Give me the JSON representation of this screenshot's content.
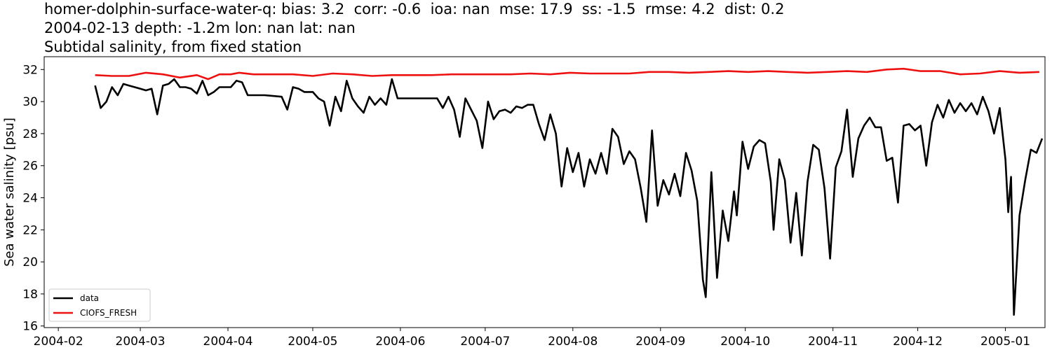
{
  "chart_data": {
    "type": "line",
    "title_lines": [
      "homer-dolphin-surface-water-q: bias: 3.2  corr: -0.6  ioa: nan  mse: 17.9  ss: -1.5  rmse: 4.2  dist: 0.2",
      "2004-02-13 depth: -1.2m lon: nan lat: nan",
      "Subtidal salinity, from fixed station"
    ],
    "xlabel": "",
    "ylabel": "Sea water salinity [psu]",
    "xlim": [
      "2004-01-27",
      "2005-01-15"
    ],
    "ylim": [
      15.9,
      32.8
    ],
    "x_ticks": [
      "2004-02",
      "2004-03",
      "2004-04",
      "2004-05",
      "2004-06",
      "2004-07",
      "2004-08",
      "2004-09",
      "2004-10",
      "2004-11",
      "2004-12",
      "2005-01"
    ],
    "y_ticks": [
      16,
      18,
      20,
      22,
      24,
      26,
      28,
      30,
      32
    ],
    "grid": false,
    "legend_position": "lower-left",
    "series": [
      {
        "name": "data",
        "color": "#000000",
        "points": [
          [
            "2004-02-14",
            31.0
          ],
          [
            "2004-02-16",
            29.6
          ],
          [
            "2004-02-18",
            30.0
          ],
          [
            "2004-02-20",
            30.9
          ],
          [
            "2004-02-22",
            30.4
          ],
          [
            "2004-02-24",
            31.1
          ],
          [
            "2004-02-26",
            31.0
          ],
          [
            "2004-02-28",
            30.9
          ],
          [
            "2004-03-01",
            30.8
          ],
          [
            "2004-03-03",
            30.7
          ],
          [
            "2004-03-05",
            30.8
          ],
          [
            "2004-03-07",
            29.2
          ],
          [
            "2004-03-09",
            31.0
          ],
          [
            "2004-03-11",
            31.1
          ],
          [
            "2004-03-13",
            31.4
          ],
          [
            "2004-03-15",
            30.9
          ],
          [
            "2004-03-17",
            30.9
          ],
          [
            "2004-03-19",
            30.8
          ],
          [
            "2004-03-21",
            30.5
          ],
          [
            "2004-03-23",
            31.3
          ],
          [
            "2004-03-25",
            30.4
          ],
          [
            "2004-03-27",
            30.6
          ],
          [
            "2004-03-29",
            30.9
          ],
          [
            "2004-03-31",
            30.9
          ],
          [
            "2004-04-02",
            30.9
          ],
          [
            "2004-04-04",
            31.3
          ],
          [
            "2004-04-06",
            31.2
          ],
          [
            "2004-04-08",
            30.4
          ],
          [
            "2004-04-14",
            30.4
          ],
          [
            "2004-04-20",
            30.3
          ],
          [
            "2004-04-22",
            29.5
          ],
          [
            "2004-04-24",
            30.9
          ],
          [
            "2004-04-26",
            30.8
          ],
          [
            "2004-04-28",
            30.6
          ],
          [
            "2004-05-01",
            30.6
          ],
          [
            "2004-05-03",
            30.2
          ],
          [
            "2004-05-05",
            30.0
          ],
          [
            "2004-05-07",
            28.5
          ],
          [
            "2004-05-09",
            30.3
          ],
          [
            "2004-05-11",
            29.4
          ],
          [
            "2004-05-13",
            31.3
          ],
          [
            "2004-05-15",
            30.2
          ],
          [
            "2004-05-17",
            29.7
          ],
          [
            "2004-05-19",
            29.3
          ],
          [
            "2004-05-21",
            30.3
          ],
          [
            "2004-05-23",
            29.8
          ],
          [
            "2004-05-25",
            30.2
          ],
          [
            "2004-05-27",
            29.8
          ],
          [
            "2004-05-29",
            31.4
          ],
          [
            "2004-05-31",
            30.2
          ],
          [
            "2004-06-08",
            30.2
          ],
          [
            "2004-06-14",
            30.2
          ],
          [
            "2004-06-16",
            29.6
          ],
          [
            "2004-06-18",
            30.3
          ],
          [
            "2004-06-20",
            29.5
          ],
          [
            "2004-06-22",
            27.8
          ],
          [
            "2004-06-24",
            30.2
          ],
          [
            "2004-06-26",
            29.5
          ],
          [
            "2004-06-28",
            28.8
          ],
          [
            "2004-06-30",
            27.1
          ],
          [
            "2004-07-02",
            30.0
          ],
          [
            "2004-07-04",
            28.9
          ],
          [
            "2004-07-06",
            29.4
          ],
          [
            "2004-07-08",
            29.5
          ],
          [
            "2004-07-10",
            29.3
          ],
          [
            "2004-07-12",
            29.7
          ],
          [
            "2004-07-14",
            29.6
          ],
          [
            "2004-07-16",
            29.8
          ],
          [
            "2004-07-18",
            29.8
          ],
          [
            "2004-07-20",
            28.6
          ],
          [
            "2004-07-22",
            27.6
          ],
          [
            "2004-07-24",
            29.2
          ],
          [
            "2004-07-26",
            28.0
          ],
          [
            "2004-07-28",
            24.7
          ],
          [
            "2004-07-30",
            27.1
          ],
          [
            "2004-08-01",
            25.6
          ],
          [
            "2004-08-03",
            26.8
          ],
          [
            "2004-08-05",
            24.7
          ],
          [
            "2004-08-07",
            26.4
          ],
          [
            "2004-08-09",
            25.5
          ],
          [
            "2004-08-11",
            26.8
          ],
          [
            "2004-08-13",
            25.5
          ],
          [
            "2004-08-15",
            28.3
          ],
          [
            "2004-08-17",
            27.8
          ],
          [
            "2004-08-19",
            26.1
          ],
          [
            "2004-08-21",
            26.9
          ],
          [
            "2004-08-23",
            26.4
          ],
          [
            "2004-08-25",
            24.6
          ],
          [
            "2004-08-27",
            22.5
          ],
          [
            "2004-08-29",
            28.2
          ],
          [
            "2004-08-31",
            23.5
          ],
          [
            "2004-09-02",
            25.1
          ],
          [
            "2004-09-04",
            24.2
          ],
          [
            "2004-09-06",
            25.5
          ],
          [
            "2004-09-08",
            24.1
          ],
          [
            "2004-09-10",
            26.8
          ],
          [
            "2004-09-12",
            25.7
          ],
          [
            "2004-09-14",
            23.8
          ],
          [
            "2004-09-16",
            18.9
          ],
          [
            "2004-09-17",
            17.8
          ],
          [
            "2004-09-19",
            25.6
          ],
          [
            "2004-09-21",
            19.0
          ],
          [
            "2004-09-23",
            23.2
          ],
          [
            "2004-09-25",
            21.3
          ],
          [
            "2004-09-27",
            24.4
          ],
          [
            "2004-09-28",
            22.9
          ],
          [
            "2004-09-30",
            27.5
          ],
          [
            "2004-10-02",
            25.8
          ],
          [
            "2004-10-04",
            27.2
          ],
          [
            "2004-10-06",
            27.6
          ],
          [
            "2004-10-08",
            27.4
          ],
          [
            "2004-10-10",
            25.0
          ],
          [
            "2004-10-11",
            22.0
          ],
          [
            "2004-10-13",
            26.4
          ],
          [
            "2004-10-15",
            25.1
          ],
          [
            "2004-10-17",
            21.2
          ],
          [
            "2004-10-19",
            24.3
          ],
          [
            "2004-10-21",
            20.4
          ],
          [
            "2004-10-23",
            25.0
          ],
          [
            "2004-10-25",
            27.3
          ],
          [
            "2004-10-27",
            27.0
          ],
          [
            "2004-10-29",
            24.6
          ],
          [
            "2004-10-31",
            20.2
          ],
          [
            "2004-11-02",
            25.9
          ],
          [
            "2004-11-04",
            26.9
          ],
          [
            "2004-11-06",
            29.5
          ],
          [
            "2004-11-08",
            25.3
          ],
          [
            "2004-11-10",
            27.7
          ],
          [
            "2004-11-12",
            28.5
          ],
          [
            "2004-11-14",
            29.0
          ],
          [
            "2004-11-16",
            28.4
          ],
          [
            "2004-11-18",
            28.4
          ],
          [
            "2004-11-20",
            26.3
          ],
          [
            "2004-11-22",
            26.5
          ],
          [
            "2004-11-24",
            23.7
          ],
          [
            "2004-11-26",
            28.5
          ],
          [
            "2004-11-28",
            28.6
          ],
          [
            "2004-11-30",
            28.2
          ],
          [
            "2004-12-02",
            28.5
          ],
          [
            "2004-12-04",
            26.0
          ],
          [
            "2004-12-06",
            28.7
          ],
          [
            "2004-12-08",
            29.8
          ],
          [
            "2004-12-10",
            29.0
          ],
          [
            "2004-12-12",
            30.1
          ],
          [
            "2004-12-14",
            29.3
          ],
          [
            "2004-12-16",
            29.9
          ],
          [
            "2004-12-18",
            29.4
          ],
          [
            "2004-12-20",
            29.9
          ],
          [
            "2004-12-22",
            29.2
          ],
          [
            "2004-12-24",
            30.3
          ],
          [
            "2004-12-26",
            29.4
          ],
          [
            "2004-12-28",
            28.0
          ],
          [
            "2004-12-30",
            29.6
          ],
          [
            "2005-01-01",
            26.4
          ],
          [
            "2005-01-02",
            23.1
          ],
          [
            "2005-01-03",
            25.3
          ],
          [
            "2005-01-04",
            16.7
          ],
          [
            "2005-01-06",
            22.9
          ],
          [
            "2005-01-08",
            25.1
          ],
          [
            "2005-01-10",
            27.0
          ],
          [
            "2005-01-12",
            26.8
          ],
          [
            "2005-01-14",
            27.7
          ]
        ]
      },
      {
        "name": "CIOFS_FRESH",
        "color": "#ee1111",
        "points": [
          [
            "2004-02-14",
            31.65
          ],
          [
            "2004-02-20",
            31.6
          ],
          [
            "2004-02-26",
            31.6
          ],
          [
            "2004-03-03",
            31.8
          ],
          [
            "2004-03-09",
            31.7
          ],
          [
            "2004-03-15",
            31.5
          ],
          [
            "2004-03-21",
            31.65
          ],
          [
            "2004-03-25",
            31.4
          ],
          [
            "2004-03-29",
            31.7
          ],
          [
            "2004-04-02",
            31.7
          ],
          [
            "2004-04-05",
            31.8
          ],
          [
            "2004-04-10",
            31.7
          ],
          [
            "2004-04-18",
            31.7
          ],
          [
            "2004-04-24",
            31.7
          ],
          [
            "2004-05-01",
            31.6
          ],
          [
            "2004-05-08",
            31.75
          ],
          [
            "2004-05-15",
            31.7
          ],
          [
            "2004-05-22",
            31.6
          ],
          [
            "2004-05-29",
            31.65
          ],
          [
            "2004-06-05",
            31.65
          ],
          [
            "2004-06-12",
            31.65
          ],
          [
            "2004-06-19",
            31.7
          ],
          [
            "2004-06-26",
            31.7
          ],
          [
            "2004-07-03",
            31.7
          ],
          [
            "2004-07-10",
            31.7
          ],
          [
            "2004-07-17",
            31.75
          ],
          [
            "2004-07-24",
            31.7
          ],
          [
            "2004-07-31",
            31.8
          ],
          [
            "2004-08-07",
            31.75
          ],
          [
            "2004-08-14",
            31.75
          ],
          [
            "2004-08-21",
            31.75
          ],
          [
            "2004-08-28",
            31.85
          ],
          [
            "2004-09-04",
            31.85
          ],
          [
            "2004-09-11",
            31.8
          ],
          [
            "2004-09-18",
            31.85
          ],
          [
            "2004-09-25",
            31.9
          ],
          [
            "2004-10-02",
            31.85
          ],
          [
            "2004-10-09",
            31.9
          ],
          [
            "2004-10-16",
            31.85
          ],
          [
            "2004-10-23",
            31.8
          ],
          [
            "2004-10-30",
            31.85
          ],
          [
            "2004-11-06",
            31.9
          ],
          [
            "2004-11-13",
            31.85
          ],
          [
            "2004-11-20",
            32.0
          ],
          [
            "2004-11-26",
            32.05
          ],
          [
            "2004-12-02",
            31.9
          ],
          [
            "2004-12-09",
            31.9
          ],
          [
            "2004-12-16",
            31.7
          ],
          [
            "2004-12-23",
            31.75
          ],
          [
            "2004-12-30",
            31.9
          ],
          [
            "2005-01-06",
            31.8
          ],
          [
            "2005-01-13",
            31.85
          ]
        ]
      }
    ]
  }
}
